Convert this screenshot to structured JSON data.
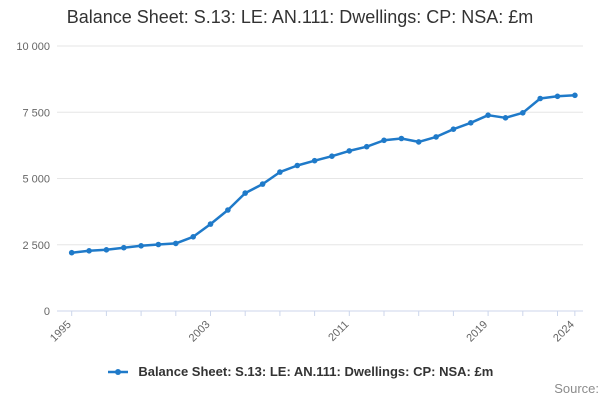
{
  "title": "Balance Sheet: S.13: LE: AN.111: Dwellings: CP: NSA: £m",
  "legend": {
    "label": "Balance Sheet: S.13: LE: AN.111: Dwellings: CP: NSA: £m"
  },
  "source_label": "Source:",
  "colors": {
    "accent": "#1f7ac9",
    "grid": "#e6e6e6",
    "axis": "#ccd6eb",
    "tick_label": "#666666",
    "title_text": "#333333",
    "source_text": "#8c8c8c"
  },
  "chart_data": {
    "type": "line",
    "title": "Balance Sheet: S.13: LE: AN.111: Dwellings: CP: NSA: £m",
    "xlabel": "",
    "ylabel": "",
    "ylim": [
      0,
      10000
    ],
    "grid": true,
    "legend_position": "bottom",
    "x": [
      1995,
      1996,
      1997,
      1998,
      1999,
      2000,
      2001,
      2002,
      2003,
      2004,
      2005,
      2006,
      2007,
      2008,
      2009,
      2010,
      2011,
      2012,
      2013,
      2014,
      2015,
      2016,
      2017,
      2018,
      2019,
      2020,
      2021,
      2022,
      2023,
      2024
    ],
    "series": [
      {
        "name": "Balance Sheet: S.13: LE: AN.111: Dwellings: CP: NSA: £m",
        "values": [
          2200,
          2270,
          2310,
          2390,
          2460,
          2510,
          2550,
          2800,
          3280,
          3810,
          4450,
          4790,
          5240,
          5490,
          5670,
          5840,
          6040,
          6200,
          6440,
          6510,
          6380,
          6570,
          6860,
          7100,
          7390,
          7290,
          7480,
          8020,
          8100,
          8140
        ]
      }
    ],
    "yticks": [
      0,
      2500,
      5000,
      7500,
      10000
    ],
    "ytick_labels": [
      "0",
      "2 500",
      "5 000",
      "7 500",
      "10 000"
    ],
    "xtick_years": [
      1995,
      1997,
      1999,
      2001,
      2003,
      2005,
      2007,
      2009,
      2011,
      2013,
      2015,
      2017,
      2019,
      2021,
      2023,
      2024
    ],
    "xlabel_years": [
      "1995",
      "2003",
      "2011",
      "2019",
      "2024"
    ]
  }
}
